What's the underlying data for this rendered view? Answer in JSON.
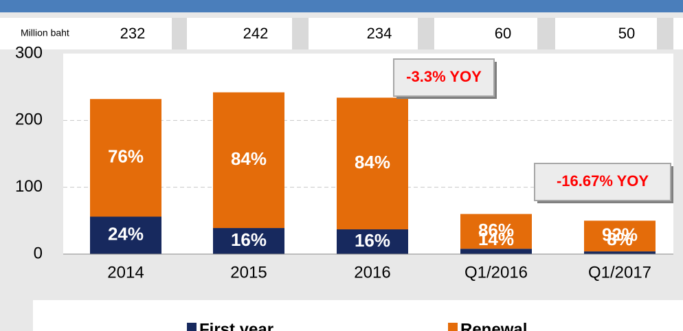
{
  "chart_data": {
    "type": "stacked_bar",
    "y_axis_label": "Million baht",
    "categories": [
      "2014",
      "2015",
      "2016",
      "Q1/2016",
      "Q1/2017"
    ],
    "totals": [
      232,
      242,
      234,
      60,
      50
    ],
    "series": [
      {
        "name": "First year",
        "color": "#17295e",
        "values": [
          56,
          39,
          37,
          8,
          4
        ],
        "value_labels": [
          "24%",
          "16%",
          "16%",
          "14%",
          "8%"
        ]
      },
      {
        "name": "Renewal",
        "color": "#e46c0a",
        "values": [
          176,
          203,
          197,
          52,
          46
        ],
        "value_labels": [
          "76%",
          "84%",
          "84%",
          "86%",
          "92%"
        ]
      }
    ],
    "annotations": [
      "-3.3% YOY",
      "-16.67% YOY"
    ],
    "ylim": [
      0,
      300
    ],
    "yticks": [
      0,
      100,
      200,
      300
    ],
    "grid": true
  }
}
